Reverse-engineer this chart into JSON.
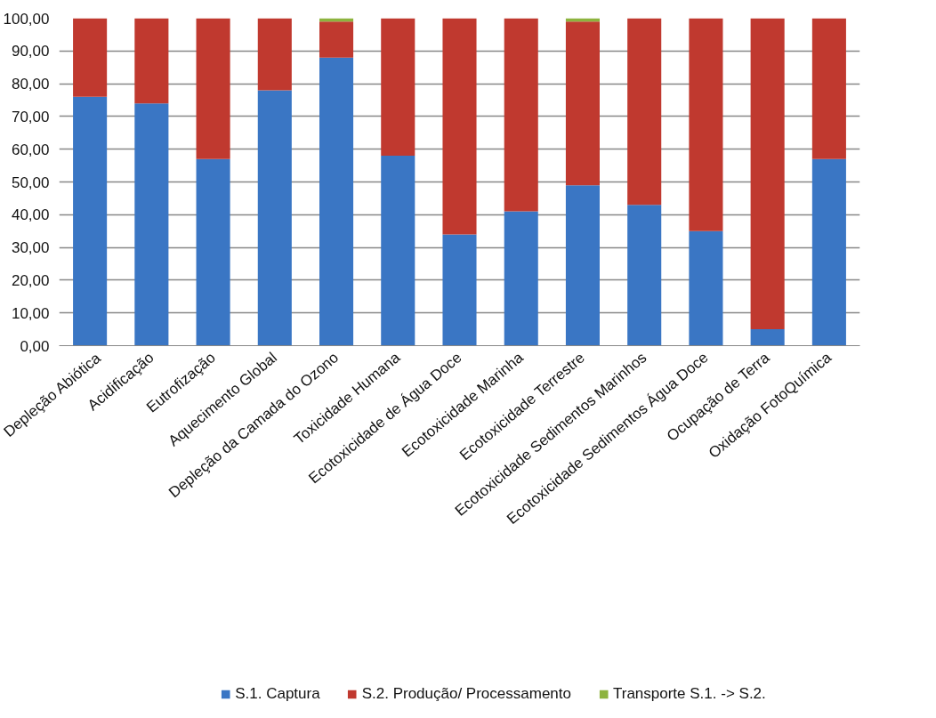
{
  "chart_data": {
    "type": "bar",
    "stacked": true,
    "categories": [
      "Depleção Abiótica",
      "Acidificação",
      "Eutrofização",
      "Aquecimento Global",
      "Depleção da Camada do Ozono",
      "Toxicidade Humana",
      "Ecotoxicidade de Água Doce",
      "Ecotoxicidade Marinha",
      "Ecotoxicidade Terrestre",
      "Ecotoxicidade Sedimentos Marinhos",
      "Ecotoxicidade Sedimentos Água Doce",
      "Ocupação de Terra",
      "Oxidação FotoQuímica"
    ],
    "series": [
      {
        "name": "S.1. Captura",
        "color": "#3a76c4",
        "values": [
          76,
          74,
          57,
          78,
          88,
          58,
          34,
          41,
          49,
          43,
          35,
          5,
          57
        ]
      },
      {
        "name": "S.2. Produção/ Processamento",
        "color": "#c0392f",
        "values": [
          24,
          26,
          43,
          22,
          11,
          42,
          66,
          59,
          50,
          57,
          65,
          95,
          43
        ]
      },
      {
        "name": "Transporte S.1. -> S.2.",
        "color": "#8db33e",
        "values": [
          0,
          0,
          0,
          0,
          1,
          0,
          0,
          0,
          1,
          0,
          0,
          0,
          0
        ]
      }
    ],
    "ylim": [
      0,
      100
    ],
    "yticks": [
      {
        "value": 0,
        "label": "0,00"
      },
      {
        "value": 10,
        "label": "10,00"
      },
      {
        "value": 20,
        "label": "20,00"
      },
      {
        "value": 30,
        "label": "30,00"
      },
      {
        "value": 40,
        "label": "40,00"
      },
      {
        "value": 50,
        "label": "50,00"
      },
      {
        "value": 60,
        "label": "60,00"
      },
      {
        "value": 70,
        "label": "70,00"
      },
      {
        "value": 80,
        "label": "80,00"
      },
      {
        "value": 90,
        "label": "90,00"
      },
      {
        "value": 100,
        "label": "100,00"
      }
    ],
    "grid": "y",
    "legend": "bottom"
  }
}
